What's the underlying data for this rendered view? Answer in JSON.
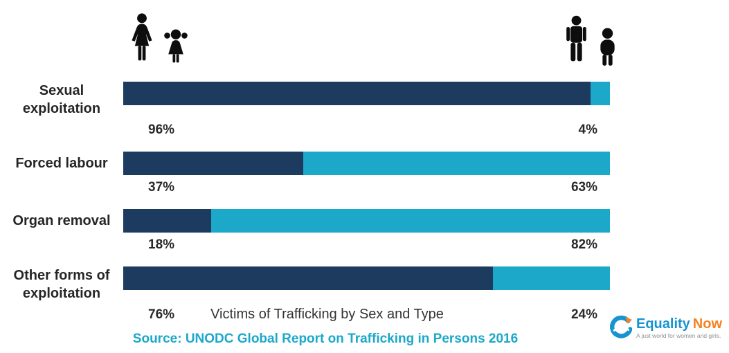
{
  "chart_data": {
    "type": "bar",
    "orientation": "horizontal",
    "stacked": true,
    "title": "Victims of Trafficking by Sex and Type",
    "source": "Source: UNODC Global Report on Trafficking in Persons 2016",
    "categories": [
      "Sexual exploitation",
      "Forced labour",
      "Organ removal",
      "Other forms of exploitation"
    ],
    "series": [
      {
        "name": "Females and girls",
        "color": "#1D3A5F",
        "values": [
          96,
          37,
          18,
          76
        ]
      },
      {
        "name": "Males and boys",
        "color": "#1BA8C9",
        "values": [
          4,
          63,
          82,
          24
        ]
      }
    ],
    "value_unit": "%",
    "xlim": [
      0,
      100
    ],
    "legend_position": "pictogram icons above bars: women/girl at left, man/boy at right",
    "grid": false
  },
  "icons": {
    "left_group": [
      "woman-icon",
      "girl-icon"
    ],
    "right_group": [
      "man-icon",
      "boy-icon"
    ]
  },
  "logo": {
    "brand_primary": "Equality",
    "brand_secondary": "Now",
    "tagline": "A just world for women and girls."
  },
  "colors": {
    "female": "#1D3A5F",
    "male": "#1BA8C9",
    "source_text": "#1BA8C9",
    "brand_blue": "#1793D1",
    "brand_orange": "#F5821F"
  }
}
